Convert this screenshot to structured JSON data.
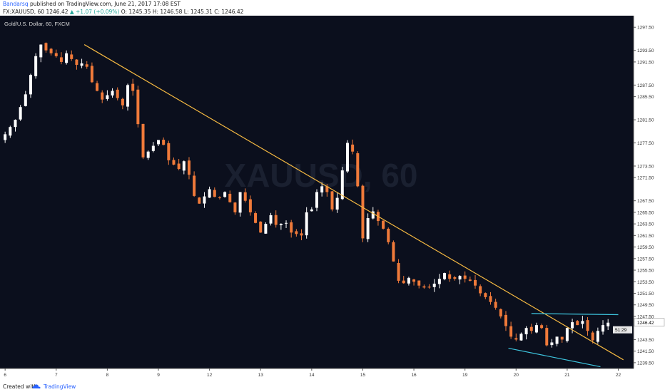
{
  "header": {
    "author": "Bandarsq",
    "published": "published on TradingView.com, June 21, 2017 17:08 EST",
    "symbol": "FX:XAUUSD, 60",
    "last": "1246.42",
    "change": "▲ +1.07 (+0.09%)",
    "ohlc": "O: 1245.35  H: 1246.58  L: 1245.31  C: 1246.42"
  },
  "chart_title": "Gold/U.S. Dollar, 60, FXCM",
  "watermark": "XAUUSD, 60",
  "footer": {
    "created": "Created with",
    "brand": "TradingView"
  },
  "colors": {
    "background": "#0b0f1d",
    "candle_up": "#ffffff",
    "candle_down": "#f07a3a",
    "trendline": "#f5b942",
    "channel": "#3ec7e0",
    "price_label_bg": "#ffffff",
    "countdown_bg": "#e8e8e8"
  },
  "chart_data": {
    "type": "candlestick",
    "x_ticks": [
      "6",
      "7",
      "8",
      "9",
      "12",
      "13",
      "14",
      "15",
      "16",
      "19",
      "20",
      "21",
      "22"
    ],
    "y_ticks": [
      "1297.50",
      "1293.50",
      "1291.50",
      "1287.50",
      "1285.50",
      "1281.50",
      "1277.50",
      "1273.50",
      "1271.50",
      "1267.50",
      "1265.50",
      "1263.50",
      "1261.50",
      "1259.50",
      "1257.50",
      "1255.50",
      "1253.50",
      "1251.50",
      "1249.50",
      "1247.50",
      "1243.50",
      "1241.50",
      "1239.50"
    ],
    "ylim": [
      1238.5,
      1299.5
    ],
    "last_price_label": "1246.42",
    "countdown_label": "51:29",
    "close_path": [
      [
        0,
        1279
      ],
      [
        2,
        1281.5
      ],
      [
        4.5,
        1287
      ],
      [
        5.5,
        1291.5
      ],
      [
        7,
        1294.5
      ],
      [
        8,
        1293.5
      ],
      [
        10,
        1292.5
      ],
      [
        11,
        1291.5
      ],
      [
        12,
        1293
      ],
      [
        14.5,
        1290.5
      ],
      [
        15.5,
        1292
      ],
      [
        17,
        1288
      ],
      [
        19,
        1285
      ],
      [
        21,
        1286.5
      ],
      [
        23,
        1284
      ],
      [
        24,
        1287.5
      ],
      [
        25,
        1286.5
      ],
      [
        27,
        1275
      ],
      [
        29,
        1277
      ],
      [
        30.5,
        1278.5
      ],
      [
        32,
        1274.5
      ],
      [
        34,
        1273
      ],
      [
        35.5,
        1275
      ],
      [
        36,
        1272
      ],
      [
        36.5,
        1269
      ],
      [
        38,
        1267
      ],
      [
        40,
        1269.5
      ],
      [
        41.5,
        1267.5
      ],
      [
        43,
        1269
      ],
      [
        45,
        1265.5
      ],
      [
        46,
        1269
      ],
      [
        47,
        1267.5
      ],
      [
        48.5,
        1264.5
      ],
      [
        50,
        1262
      ],
      [
        52,
        1265
      ],
      [
        53.5,
        1262.5
      ],
      [
        54.5,
        1264.5
      ],
      [
        56,
        1262
      ],
      [
        58,
        1261.5
      ],
      [
        59,
        1265.5
      ],
      [
        60,
        1266
      ],
      [
        61,
        1269
      ],
      [
        62,
        1270
      ],
      [
        63,
        1269
      ],
      [
        64,
        1266
      ],
      [
        65,
        1268
      ],
      [
        67,
        1277.5
      ],
      [
        68,
        1276
      ],
      [
        69,
        1270
      ],
      [
        69.3,
        1264
      ],
      [
        69.6,
        1262.5
      ],
      [
        70,
        1261
      ],
      [
        71,
        1264.5
      ],
      [
        71.8,
        1266
      ],
      [
        73,
        1264
      ],
      [
        74.5,
        1262
      ],
      [
        76,
        1257
      ],
      [
        77.5,
        1252
      ],
      [
        78.5,
        1254.5
      ],
      [
        80,
        1253.5
      ],
      [
        81.5,
        1252.5
      ],
      [
        83,
        1252.5
      ],
      [
        84.5,
        1253.5
      ],
      [
        86,
        1255
      ],
      [
        87,
        1254
      ],
      [
        88,
        1254
      ],
      [
        89,
        1254.5
      ],
      [
        90,
        1254
      ],
      [
        91.5,
        1253.5
      ],
      [
        93,
        1251.5
      ],
      [
        94.5,
        1250.5
      ],
      [
        96,
        1249
      ],
      [
        97,
        1247.5
      ],
      [
        98.5,
        1245
      ],
      [
        99.5,
        1243
      ],
      [
        100.5,
        1244
      ],
      [
        102,
        1245.5
      ],
      [
        103,
        1245
      ],
      [
        104,
        1246
      ],
      [
        104.5,
        1247
      ],
      [
        105,
        1245.5
      ],
      [
        106,
        1242.5
      ],
      [
        107,
        1243
      ],
      [
        108,
        1244
      ],
      [
        109,
        1243.5
      ],
      [
        110,
        1245.5
      ],
      [
        111,
        1246.5
      ],
      [
        112,
        1246
      ],
      [
        112.8,
        1247
      ],
      [
        113.5,
        1246
      ],
      [
        114.5,
        1244
      ],
      [
        115.3,
        1243
      ],
      [
        116,
        1245
      ],
      [
        117,
        1246
      ],
      [
        118,
        1246.42
      ]
    ],
    "annotations": [
      {
        "type": "trendline",
        "from": [
          15.5,
          1294.5
        ],
        "to": [
          121,
          1240
        ]
      },
      {
        "type": "channel-upper",
        "from": [
          103,
          1248
        ],
        "to": [
          120,
          1247.8
        ]
      },
      {
        "type": "channel-lower",
        "from": [
          98.5,
          1242
        ],
        "to": [
          116.5,
          1238.8
        ]
      }
    ]
  }
}
